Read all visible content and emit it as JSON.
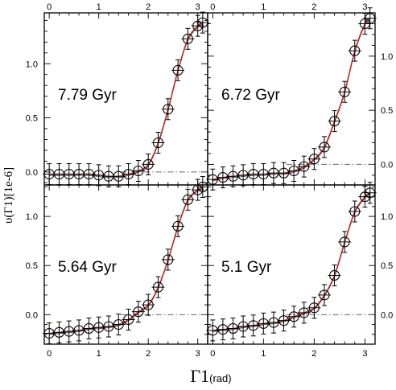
{
  "chart_data": {
    "type": "scatter",
    "layout": "2x2 grid of panels sharing axes",
    "xlabel_main": "Γ1",
    "xlabel_unit": "(rad)",
    "ylabel": "υ(Γ1)[1e-6]",
    "x_ticks": [
      "0",
      "1",
      "2",
      "3"
    ],
    "y_ticks": [
      "0.0",
      "0.5",
      "1.0"
    ],
    "xlim": [
      -0.1,
      3.2
    ],
    "grid": false,
    "colors": {
      "points": "#000000",
      "fit": "#cc2222",
      "model": "#555555",
      "reference": "#666666"
    },
    "panels": [
      {
        "label": "7.79 Gyr",
        "ylim": [
          -0.12,
          1.47
        ],
        "reference_line_y": 0.0,
        "points": {
          "x": [
            0.0,
            0.2,
            0.4,
            0.6,
            0.8,
            1.0,
            1.2,
            1.4,
            1.6,
            1.8,
            2.0,
            2.2,
            2.4,
            2.6,
            2.8,
            3.0,
            3.1
          ],
          "y": [
            -0.02,
            -0.02,
            -0.02,
            -0.02,
            -0.02,
            -0.03,
            -0.04,
            -0.04,
            -0.02,
            0.01,
            0.07,
            0.27,
            0.58,
            0.94,
            1.23,
            1.35,
            1.38
          ]
        }
      },
      {
        "label": "6.72 Gyr",
        "ylim": [
          -0.19,
          1.4
        ],
        "reference_line_y": 0.0,
        "points": {
          "x": [
            0.0,
            0.2,
            0.4,
            0.6,
            0.8,
            1.0,
            1.2,
            1.4,
            1.6,
            1.8,
            2.0,
            2.2,
            2.4,
            2.6,
            2.8,
            3.0,
            3.1
          ],
          "y": [
            -0.14,
            -0.12,
            -0.11,
            -0.1,
            -0.09,
            -0.09,
            -0.08,
            -0.08,
            -0.06,
            -0.02,
            0.05,
            0.16,
            0.4,
            0.67,
            1.05,
            1.3,
            1.35
          ]
        }
      },
      {
        "label": "5.64 Gyr",
        "ylim": [
          -0.3,
          1.32
        ],
        "reference_line_y": 0.0,
        "points": {
          "x": [
            0.0,
            0.2,
            0.4,
            0.6,
            0.8,
            1.0,
            1.2,
            1.4,
            1.6,
            1.8,
            2.0,
            2.2,
            2.4,
            2.6,
            2.8,
            3.0,
            3.1
          ],
          "y": [
            -0.19,
            -0.18,
            -0.17,
            -0.16,
            -0.14,
            -0.13,
            -0.12,
            -0.1,
            -0.05,
            0.03,
            0.1,
            0.28,
            0.56,
            0.9,
            1.17,
            1.27,
            1.3
          ]
        }
      },
      {
        "label": "5.1 Gyr",
        "ylim": [
          -0.3,
          1.32
        ],
        "reference_line_y": 0.0,
        "points": {
          "x": [
            0.0,
            0.2,
            0.4,
            0.6,
            0.8,
            1.0,
            1.2,
            1.4,
            1.6,
            1.8,
            2.0,
            2.2,
            2.4,
            2.6,
            2.8,
            3.0,
            3.1
          ],
          "y": [
            -0.16,
            -0.15,
            -0.14,
            -0.12,
            -0.11,
            -0.09,
            -0.08,
            -0.06,
            -0.02,
            0.02,
            0.07,
            0.2,
            0.4,
            0.74,
            1.05,
            1.2,
            1.24
          ]
        }
      }
    ]
  }
}
